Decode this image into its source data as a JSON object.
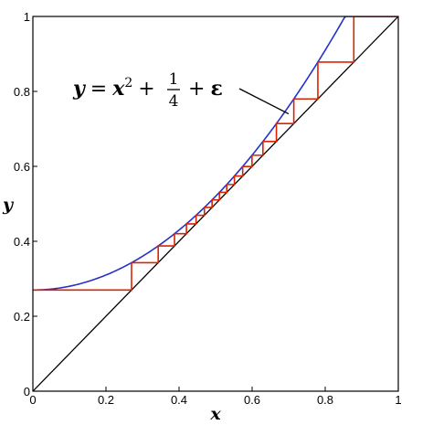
{
  "chart_data": {
    "type": "line",
    "xlabel": "x",
    "ylabel": "y",
    "xlim": [
      0,
      1
    ],
    "ylim": [
      0,
      1
    ],
    "x_ticks": [
      0,
      0.2,
      0.4,
      0.6,
      0.8,
      1
    ],
    "y_ticks": [
      0,
      0.2,
      0.4,
      0.6,
      0.8,
      1
    ],
    "x_tick_labels": [
      "0",
      "0.2",
      "0.4",
      "0.6",
      "0.8",
      "1"
    ],
    "y_tick_labels": [
      "0",
      "0.2",
      "0.4",
      "0.6",
      "0.8",
      "1"
    ],
    "grid": false,
    "annotation": {
      "y_var": "y",
      "equals": "=",
      "x_var": "x",
      "exponent": "2",
      "plus1": "+",
      "frac_num": "1",
      "frac_den": "4",
      "plus2": "+",
      "epsilon": "ε",
      "arrow_to": {
        "x": 0.7,
        "y": 0.74
      }
    },
    "series": [
      {
        "kind": "curve",
        "epsilon": 0.02,
        "color": "#2233cc",
        "x_range": [
          0,
          0.86
        ]
      },
      {
        "kind": "identity",
        "color": "#000000"
      },
      {
        "kind": "cobweb",
        "color": "#dd2200",
        "x0": 0,
        "epsilon": 0.02
      }
    ],
    "colors": {
      "curve": "#2233cc",
      "identity": "#000000",
      "cobweb": "#dd2200",
      "frame": "#000000"
    }
  }
}
